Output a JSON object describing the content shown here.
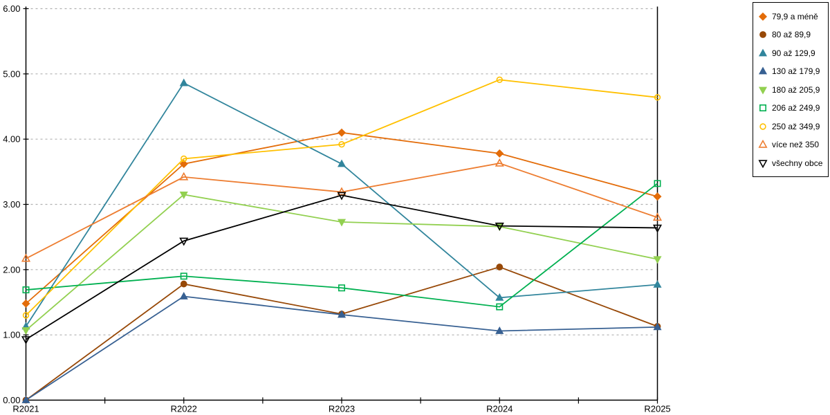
{
  "chart_data": {
    "type": "line",
    "title": "",
    "xlabel": "",
    "ylabel": "",
    "legend_position": "right",
    "grid": "horizontal-dashed",
    "categories": [
      "R2021",
      "R2022",
      "R2023",
      "R2024",
      "R2025"
    ],
    "y_axis": {
      "min": 0,
      "max": 6,
      "tick_step": 1,
      "tick_labels": [
        "0.00",
        "1.00",
        "2.00",
        "3.00",
        "4.00",
        "5.00",
        "6.00"
      ]
    },
    "x_minor_ticks_between_categories": true,
    "colors": {
      "gridline": "#b0b0b0",
      "axis": "#000000",
      "background": "#ffffff"
    },
    "series": [
      {
        "name": "79,9 a méně",
        "color": "#e36c09",
        "marker": "diamond",
        "fill": "filled",
        "values": [
          1.48,
          3.62,
          4.1,
          3.78,
          3.12
        ]
      },
      {
        "name": "80 až 89,9",
        "color": "#974807",
        "marker": "circle",
        "fill": "filled",
        "values": [
          0.0,
          1.78,
          1.32,
          2.04,
          1.13
        ]
      },
      {
        "name": "90 až 129,9",
        "color": "#31859c",
        "marker": "triangle-up",
        "fill": "filled",
        "values": [
          1.13,
          4.86,
          3.62,
          1.57,
          1.77
        ]
      },
      {
        "name": "130 až 179,9",
        "color": "#376092",
        "marker": "triangle-up",
        "fill": "filled",
        "values": [
          0.0,
          1.59,
          1.31,
          1.06,
          1.12
        ]
      },
      {
        "name": "180 až 205,9",
        "color": "#92d050",
        "marker": "triangle-down",
        "fill": "filled",
        "values": [
          1.07,
          3.15,
          2.73,
          2.66,
          2.16
        ]
      },
      {
        "name": "206 až 249,9",
        "color": "#00b050",
        "marker": "square",
        "fill": "hollow",
        "values": [
          1.69,
          1.9,
          1.72,
          1.43,
          3.32
        ]
      },
      {
        "name": "250 až 349,9",
        "color": "#ffc000",
        "marker": "circle",
        "fill": "hollow",
        "values": [
          1.3,
          3.7,
          3.92,
          4.91,
          4.64
        ]
      },
      {
        "name": "více než 350",
        "color": "#ed7d31",
        "marker": "triangle-up",
        "fill": "hollow",
        "values": [
          2.17,
          3.42,
          3.19,
          3.63,
          2.8
        ]
      },
      {
        "name": "všechny obce",
        "color": "#000000",
        "marker": "triangle-down",
        "fill": "hollow",
        "values": [
          0.93,
          2.44,
          3.14,
          2.67,
          2.64
        ]
      }
    ]
  }
}
